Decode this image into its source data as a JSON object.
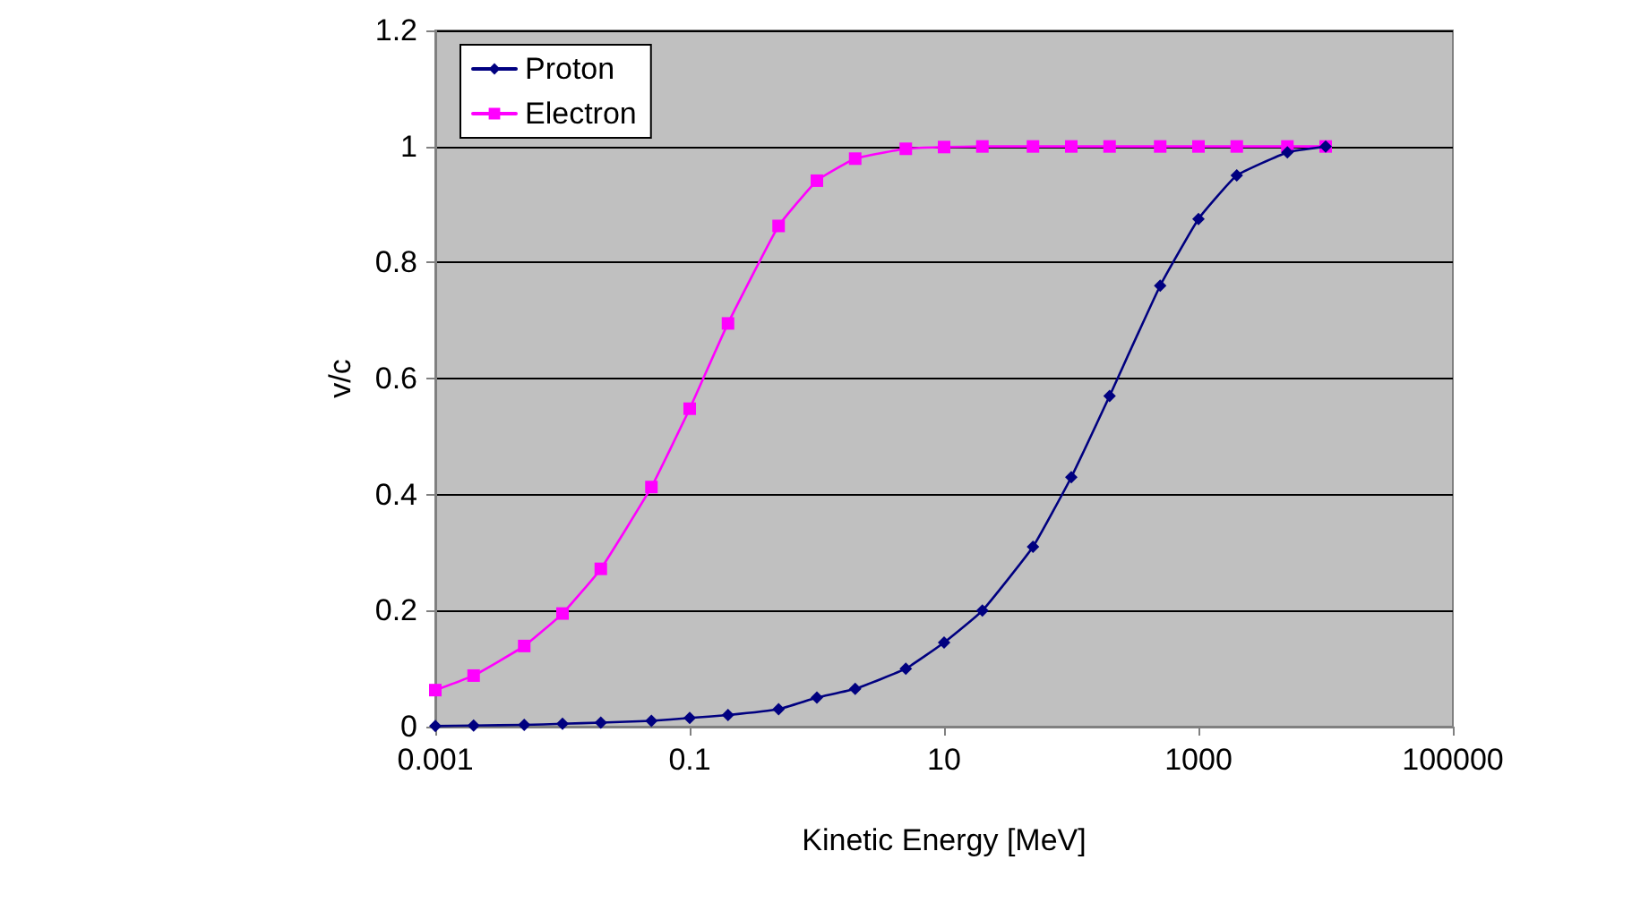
{
  "chart_data": {
    "type": "line",
    "xlabel": "Kinetic Energy [MeV]",
    "ylabel": "v/c",
    "x": [
      0.001,
      0.002,
      0.005,
      0.01,
      0.02,
      0.05,
      0.1,
      0.2,
      0.5,
      1,
      2,
      5,
      10,
      20,
      50,
      100,
      200,
      500,
      1000,
      2000,
      5000,
      10000
    ],
    "series": [
      {
        "name": "Proton",
        "color": "#000080",
        "marker": "diamond",
        "values": [
          0.001,
          0.002,
          0.003,
          0.005,
          0.007,
          0.01,
          0.015,
          0.02,
          0.03,
          0.05,
          0.065,
          0.1,
          0.145,
          0.2,
          0.31,
          0.43,
          0.57,
          0.76,
          0.875,
          0.95,
          0.99,
          1.0
        ]
      },
      {
        "name": "Electron",
        "color": "#ff00ff",
        "marker": "square",
        "values": [
          0.063,
          0.088,
          0.139,
          0.195,
          0.272,
          0.413,
          0.548,
          0.695,
          0.863,
          0.941,
          0.979,
          0.996,
          0.999,
          1.0,
          1.0,
          1.0,
          1.0,
          1.0,
          1.0,
          1.0,
          1.0,
          1.0
        ]
      }
    ],
    "log": "x",
    "xlim": [
      0.001,
      100000
    ],
    "xticks": [
      0.001,
      0.1,
      10,
      1000,
      100000
    ],
    "ylim": [
      0,
      1.2
    ],
    "yticks": [
      0,
      0.2,
      0.4,
      0.6,
      0.8,
      1,
      1.2
    ],
    "grid": "y",
    "legend": "top left",
    "line_style": "solid"
  }
}
